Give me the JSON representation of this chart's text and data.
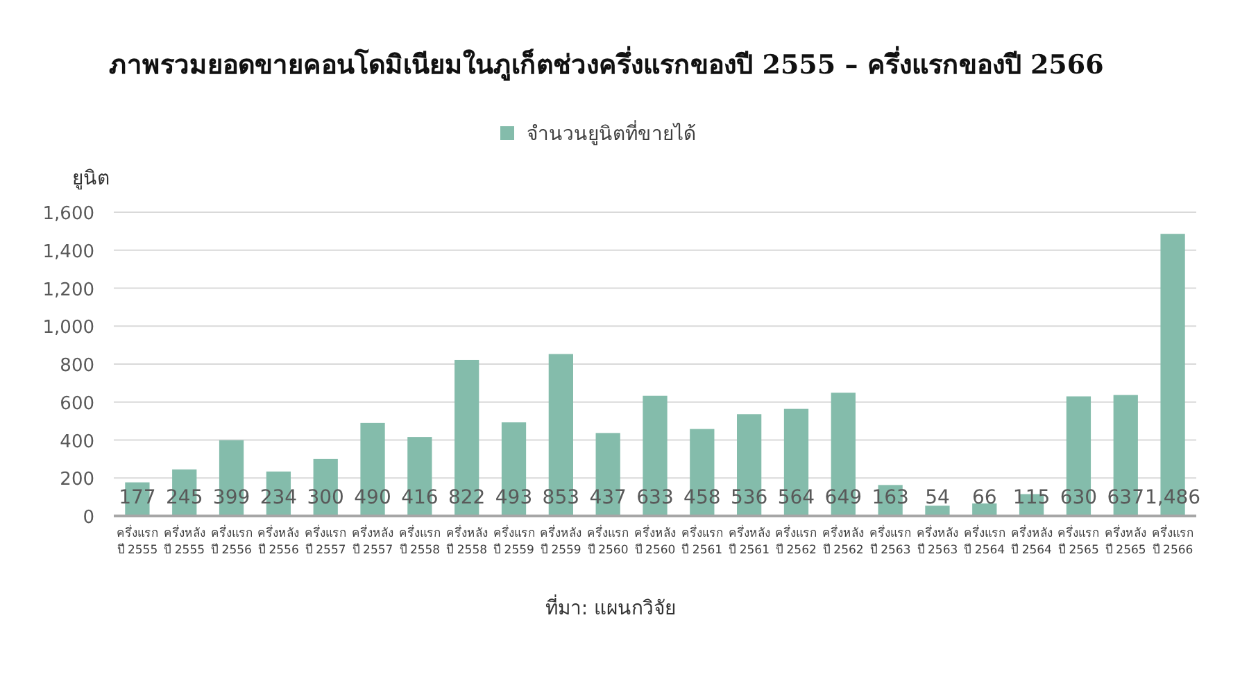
{
  "chart_data": {
    "type": "bar",
    "title": "ภาพรวมยอดขายคอนโดมิเนียมในภูเก็ตช่วงครึ่งแรกของปี 2555 – ครึ่งแรกของปี 2566",
    "ylabel": "ยูนิต",
    "categories": [
      "ครึ่งแรก ปี 2555",
      "ครึ่งหลัง ปี 2555",
      "ครึ่งแรก ปี 2556",
      "ครึ่งหลัง ปี 2556",
      "ครึ่งแรก ปี 2557",
      "ครึ่งหลัง ปี 2557",
      "ครึ่งแรก ปี 2558",
      "ครึ่งหลัง ปี 2558",
      "ครึ่งแรก ปี 2559",
      "ครึ่งหลัง ปี 2559",
      "ครึ่งแรก ปี 2560",
      "ครึ่งหลัง ปี 2560",
      "ครึ่งแรก ปี 2561",
      "ครึ่งหลัง ปี 2561",
      "ครึ่งแรก ปี 2562",
      "ครึ่งหลัง ปี 2562",
      "ครึ่งแรก ปี 2563",
      "ครึ่งหลัง ปี 2563",
      "ครึ่งแรก ปี 2564",
      "ครึ่งหลัง ปี 2564",
      "ครึ่งแรก ปี 2565",
      "ครึ่งหลัง ปี 2565",
      "ครึ่งแรก ปี 2566"
    ],
    "series": [
      {
        "name": "จำนวนยูนิตที่ขายได้",
        "color": "#84bcab",
        "values": [
          177,
          245,
          399,
          234,
          300,
          490,
          416,
          822,
          493,
          853,
          437,
          633,
          458,
          536,
          564,
          649,
          163,
          54,
          66,
          115,
          630,
          637,
          1486
        ],
        "value_labels": [
          "177",
          "245",
          "399",
          "234",
          "300",
          "490",
          "416",
          "822",
          "493",
          "853",
          "437",
          "633",
          "458",
          "536",
          "564",
          "649",
          "163",
          "54",
          "66",
          "115",
          "630",
          "637",
          "1,486"
        ]
      }
    ],
    "ylim": [
      0,
      1600
    ],
    "yticks": [
      0,
      200,
      400,
      600,
      800,
      {
        "value": 1000,
        "label": "1,000"
      },
      {
        "value": 1200,
        "label": "1,200"
      },
      {
        "value": 1400,
        "label": "1,400"
      },
      {
        "value": 1600,
        "label": "1,600"
      }
    ],
    "grid": "y",
    "legend": "top",
    "annotations": [
      "ที่มา: แผนกวิจัย"
    ]
  }
}
